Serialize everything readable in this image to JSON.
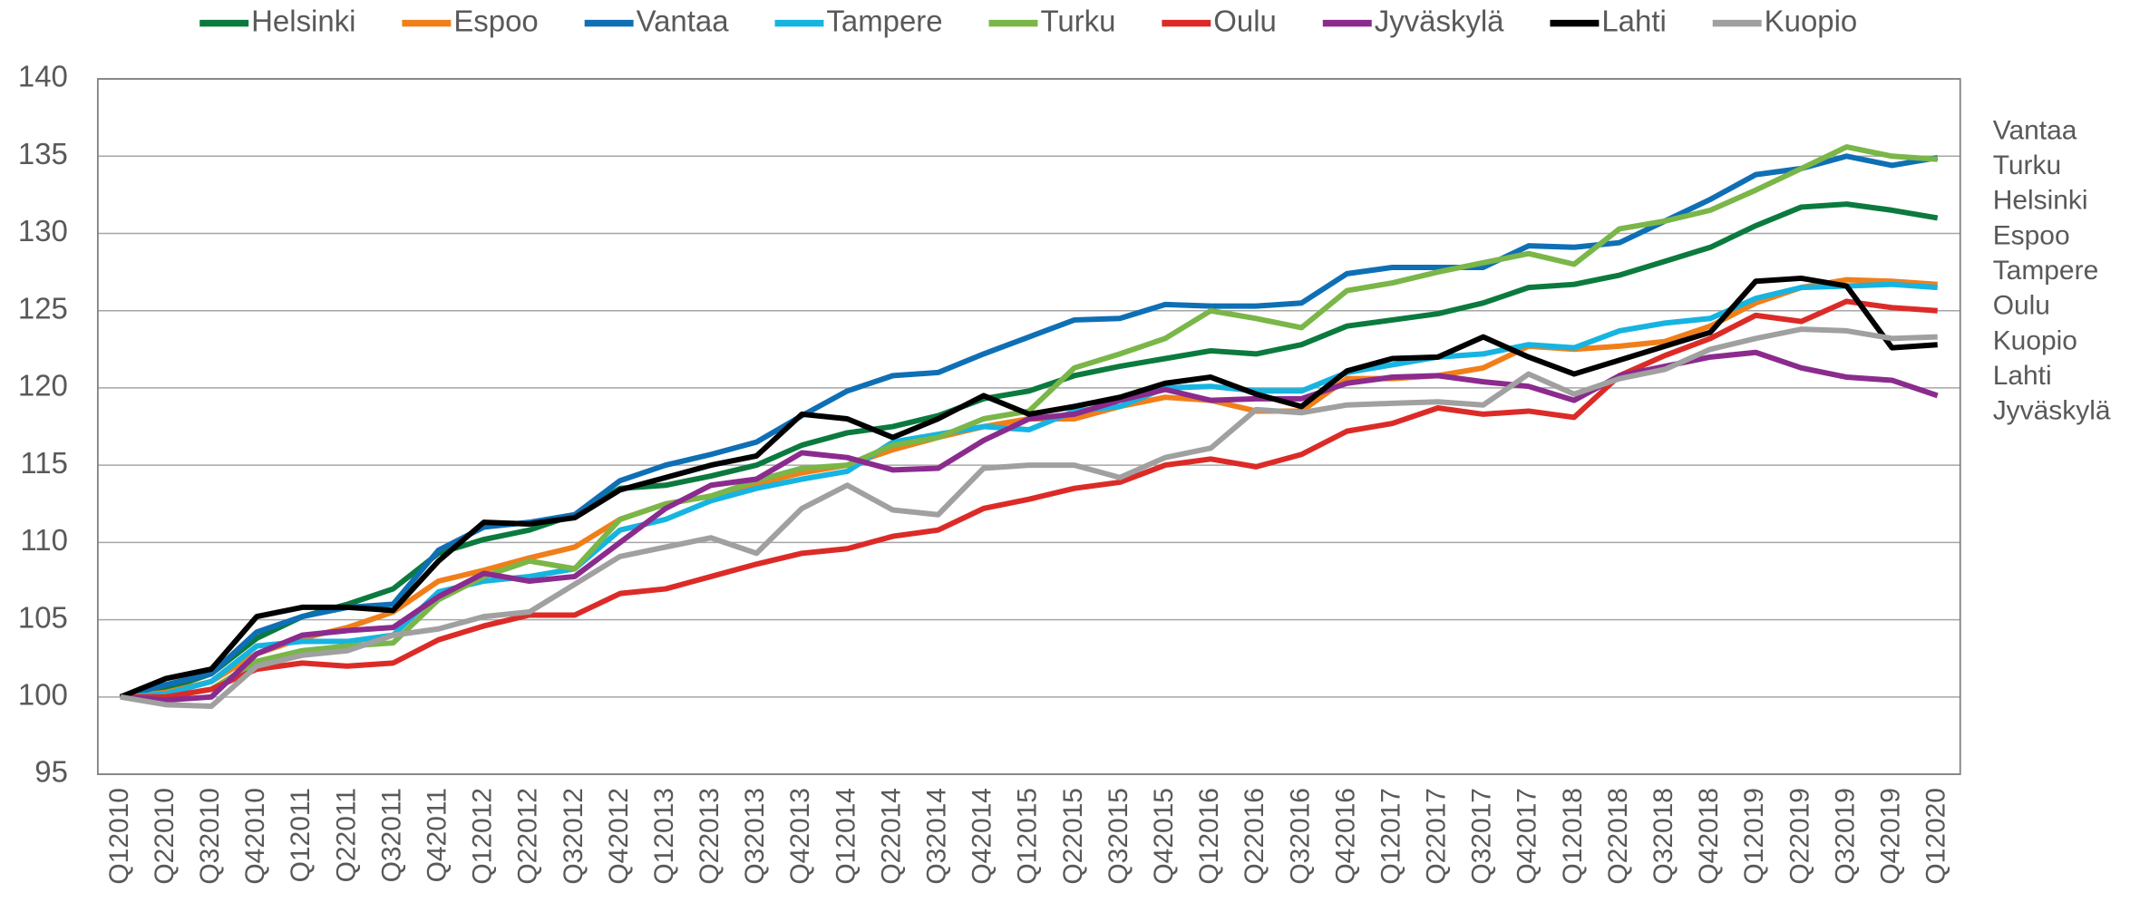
{
  "chart_data": {
    "type": "line",
    "categories": [
      "Q12010",
      "Q22010",
      "Q32010",
      "Q42010",
      "Q12011",
      "Q22011",
      "Q32011",
      "Q42011",
      "Q12012",
      "Q22012",
      "Q32012",
      "Q42012",
      "Q12013",
      "Q22013",
      "Q32013",
      "Q42013",
      "Q12014",
      "Q22014",
      "Q32014",
      "Q42014",
      "Q12015",
      "Q22015",
      "Q32015",
      "Q42015",
      "Q12016",
      "Q22016",
      "Q32016",
      "Q42016",
      "Q12017",
      "Q22017",
      "Q32017",
      "Q42017",
      "Q12018",
      "Q22018",
      "Q32018",
      "Q42018",
      "Q12019",
      "Q22019",
      "Q32019",
      "Q42019",
      "Q12020"
    ],
    "series": [
      {
        "name": "Helsinki",
        "color": "#0b7a3e",
        "values": [
          100,
          100.5,
          101.5,
          103.8,
          105.2,
          106,
          107,
          109.3,
          110.2,
          110.8,
          111.8,
          113.5,
          113.7,
          114.3,
          115,
          116.3,
          117.1,
          117.5,
          118.2,
          119.3,
          119.8,
          120.8,
          121.4,
          121.9,
          122.4,
          122.2,
          122.8,
          124,
          124.4,
          124.8,
          125.5,
          126.5,
          126.7,
          127.3,
          128.2,
          129.1,
          130.5,
          131.7,
          131.9,
          131.5,
          131
        ]
      },
      {
        "name": "Espoo",
        "color": "#f07f1a",
        "values": [
          100,
          100.3,
          101,
          102.8,
          103.8,
          104.5,
          105.5,
          107.5,
          108.2,
          109,
          109.7,
          111.5,
          112.5,
          113,
          113.8,
          114.5,
          115,
          116,
          116.8,
          117.5,
          118,
          118,
          118.8,
          119.4,
          119.2,
          118.5,
          118.5,
          120.6,
          120.6,
          120.8,
          121.3,
          122.7,
          122.5,
          122.7,
          123,
          124,
          125.5,
          126.5,
          127,
          126.9,
          126.7
        ]
      },
      {
        "name": "Vantaa",
        "color": "#0f6fb5",
        "values": [
          100,
          100.8,
          101.5,
          104.2,
          105.2,
          105.8,
          106,
          109.5,
          111,
          111.3,
          111.8,
          114,
          115,
          115.7,
          116.5,
          118.2,
          119.8,
          120.8,
          121,
          122.2,
          123.3,
          124.4,
          124.5,
          125.4,
          125.3,
          125.3,
          125.5,
          127.4,
          127.8,
          127.8,
          127.8,
          129.2,
          129.1,
          129.4,
          130.8,
          132.2,
          133.8,
          134.2,
          135,
          134.4,
          134.9
        ]
      },
      {
        "name": "Tampere",
        "color": "#16b4e0",
        "values": [
          100,
          100.2,
          101,
          103.3,
          103.6,
          103.6,
          104,
          106.8,
          107.5,
          107.8,
          108.3,
          110.8,
          111.5,
          112.7,
          113.5,
          114.1,
          114.6,
          116.5,
          117,
          117.5,
          117.3,
          118.5,
          118.8,
          120,
          120.1,
          119.8,
          119.8,
          121,
          121.5,
          122,
          122.2,
          122.8,
          122.6,
          123.7,
          124.2,
          124.5,
          125.8,
          126.5,
          126.6,
          126.7,
          126.5
        ]
      },
      {
        "name": "Turku",
        "color": "#7ab648",
        "values": [
          100,
          100,
          100.5,
          102.3,
          103,
          103.3,
          103.5,
          106.3,
          107.8,
          108.8,
          108.3,
          111.5,
          112.5,
          113,
          114,
          114.8,
          115,
          116.3,
          116.8,
          118,
          118.5,
          121.3,
          122.2,
          123.2,
          125,
          124.5,
          123.9,
          126.3,
          126.8,
          127.5,
          128.1,
          128.7,
          128,
          130.3,
          130.8,
          131.5,
          132.8,
          134.2,
          135.6,
          135,
          134.8
        ]
      },
      {
        "name": "Oulu",
        "color": "#dc2b27",
        "values": [
          100,
          100,
          100.5,
          101.8,
          102.2,
          102,
          102.2,
          103.7,
          104.6,
          105.3,
          105.3,
          106.7,
          107,
          107.8,
          108.6,
          109.3,
          109.6,
          110.4,
          110.8,
          112.2,
          112.8,
          113.5,
          113.9,
          115,
          115.4,
          114.9,
          115.7,
          117.2,
          117.7,
          118.7,
          118.3,
          118.5,
          118.1,
          120.8,
          122.1,
          123.2,
          124.7,
          124.3,
          125.6,
          125.2,
          125
        ]
      },
      {
        "name": "Jyväskylä",
        "color": "#8b2b8e",
        "values": [
          100,
          99.8,
          100,
          102.8,
          104,
          104.3,
          104.5,
          106.5,
          108,
          107.5,
          107.8,
          110,
          112.2,
          113.7,
          114.1,
          115.8,
          115.5,
          114.7,
          114.8,
          116.6,
          118,
          118.3,
          119.2,
          119.9,
          119.2,
          119.3,
          119.3,
          120.3,
          120.7,
          120.8,
          120.4,
          120.1,
          119.2,
          120.8,
          121.4,
          122,
          122.3,
          121.3,
          120.7,
          120.5,
          119.5
        ]
      },
      {
        "name": "Lahti",
        "color": "#000000",
        "values": [
          100,
          101.2,
          101.8,
          105.2,
          105.8,
          105.8,
          105.6,
          108.8,
          111.3,
          111.2,
          111.6,
          113.4,
          114.2,
          115,
          115.6,
          118.3,
          118,
          116.8,
          118,
          119.5,
          118.3,
          118.8,
          119.4,
          120.3,
          120.7,
          119.6,
          118.8,
          121.1,
          121.9,
          122,
          123.3,
          122,
          120.9,
          121.8,
          122.7,
          123.6,
          126.9,
          127.1,
          126.6,
          122.6,
          122.8
        ]
      },
      {
        "name": "Kuopio",
        "color": "#a0a0a0",
        "values": [
          100,
          99.5,
          99.4,
          102,
          102.7,
          103,
          104,
          104.4,
          105.2,
          105.5,
          107.3,
          109.1,
          109.7,
          110.3,
          109.3,
          112.2,
          113.7,
          112.1,
          111.8,
          114.8,
          115,
          115,
          114.2,
          115.5,
          116.1,
          118.6,
          118.4,
          118.9,
          119,
          119.1,
          118.9,
          120.9,
          119.6,
          120.6,
          121.2,
          122.5,
          123.2,
          123.8,
          123.7,
          123.2,
          123.3
        ]
      }
    ],
    "end_labels": [
      "Vantaa",
      "Turku",
      "Helsinki",
      "Espoo",
      "Tampere",
      "Oulu",
      "Kuopio",
      "Lahti",
      "Jyväskylä"
    ],
    "ylim": [
      95,
      140
    ],
    "yticks": [
      95,
      100,
      105,
      110,
      115,
      120,
      125,
      130,
      135,
      140
    ],
    "grid": true,
    "legend": "top"
  }
}
